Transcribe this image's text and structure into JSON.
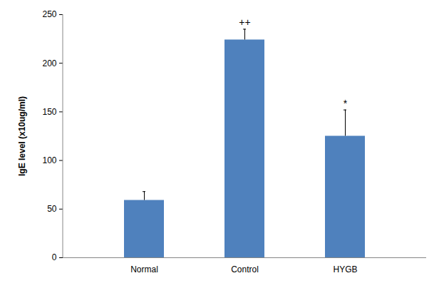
{
  "chart_data": {
    "type": "bar",
    "categories": [
      "Normal",
      "Control",
      "HYGB"
    ],
    "values": [
      59,
      224,
      125
    ],
    "errors": [
      9,
      11,
      27
    ],
    "annotations": [
      null,
      "++",
      "*"
    ],
    "color": "#4f81bd",
    "y_label": "IgE level (x10ug/ml)",
    "ylim": [
      0,
      250
    ],
    "yticks": [
      0,
      50,
      100,
      150,
      200,
      250
    ],
    "grid": false
  }
}
